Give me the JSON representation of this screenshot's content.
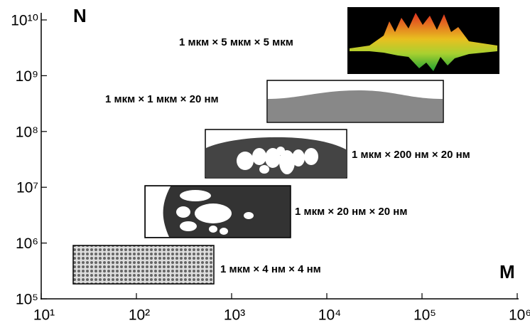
{
  "chart_data": {
    "type": "annotated-log-axes",
    "x_label": "M",
    "y_label": "N",
    "log_x": true,
    "log_y": true,
    "xlim": [
      10,
      1000000
    ],
    "ylim": [
      100000,
      10000000000
    ],
    "xticks": [
      {
        "value": 10,
        "label": "10¹"
      },
      {
        "value": 100,
        "label": "10²"
      },
      {
        "value": 1000,
        "label": "10³"
      },
      {
        "value": 10000,
        "label": "10⁴"
      },
      {
        "value": 100000,
        "label": "10⁵"
      },
      {
        "value": 1000000,
        "label": "10⁶"
      }
    ],
    "yticks": [
      {
        "value": 100000,
        "label": "10⁵"
      },
      {
        "value": 1000000,
        "label": "10⁶"
      },
      {
        "value": 10000000,
        "label": "10⁷"
      },
      {
        "value": 100000000,
        "label": "10⁸"
      },
      {
        "value": 1000000000,
        "label": "10⁹"
      },
      {
        "value": 10000000000,
        "label": "10¹⁰"
      }
    ],
    "annotations": [
      "1 мкм × 5 мкм × 5 мкм",
      "1 мкм × 1 мкм × 20 нм",
      "1 мкм × 200 нм × 20 нм",
      "1 мкм × 20 нм × 20 нм",
      "1 мкм × 4 нм × 4 нм"
    ]
  }
}
